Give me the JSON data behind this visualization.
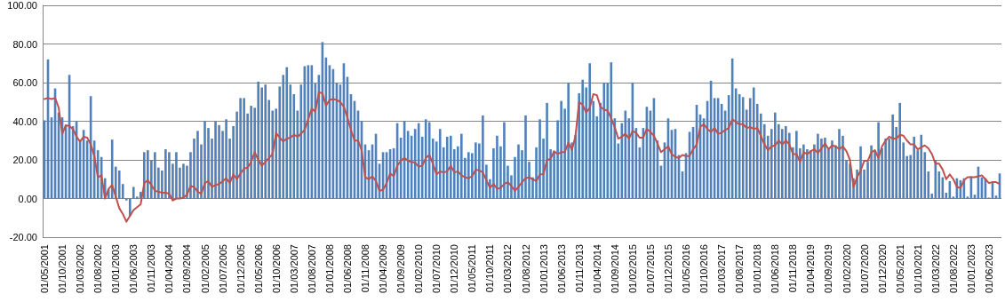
{
  "chart_data": {
    "type": "bar",
    "categories": [
      "01/05/2001",
      null,
      null,
      null,
      null,
      "01/10/2001",
      null,
      null,
      null,
      null,
      "01/03/2002",
      null,
      null,
      null,
      null,
      "01/08/2002",
      null,
      null,
      null,
      null,
      "01/01/2003",
      null,
      null,
      null,
      null,
      "01/06/2003",
      null,
      null,
      null,
      null,
      "01/11/2003",
      null,
      null,
      null,
      null,
      "01/04/2004",
      null,
      null,
      null,
      null,
      "01/09/2004",
      null,
      null,
      null,
      null,
      "01/02/2005",
      null,
      null,
      null,
      null,
      "01/07/2005",
      null,
      null,
      null,
      null,
      "01/12/2005",
      null,
      null,
      null,
      null,
      "01/05/2006",
      null,
      null,
      null,
      null,
      "01/10/2006",
      null,
      null,
      null,
      null,
      "01/03/2007",
      null,
      null,
      null,
      null,
      "01/08/2007",
      null,
      null,
      null,
      null,
      "01/01/2008",
      null,
      null,
      null,
      null,
      "01/06/2008",
      null,
      null,
      null,
      null,
      "01/11/2008",
      null,
      null,
      null,
      null,
      "01/04/2009",
      null,
      null,
      null,
      null,
      "01/09/2009",
      null,
      null,
      null,
      null,
      "01/02/2010",
      null,
      null,
      null,
      null,
      "01/07/2010",
      null,
      null,
      null,
      null,
      "01/12/2010",
      null,
      null,
      null,
      null,
      "01/05/2011",
      null,
      null,
      null,
      null,
      "01/10/2011",
      null,
      null,
      null,
      null,
      "01/03/2012",
      null,
      null,
      null,
      null,
      "01/08/2012",
      null,
      null,
      null,
      null,
      "01/01/2013",
      null,
      null,
      null,
      null,
      "01/06/2013",
      null,
      null,
      null,
      null,
      "01/11/2013",
      null,
      null,
      null,
      null,
      "01/04/2014",
      null,
      null,
      null,
      null,
      "01/09/2014",
      null,
      null,
      null,
      null,
      "01/02/2015",
      null,
      null,
      null,
      null,
      "01/07/2015",
      null,
      null,
      null,
      null,
      "01/12/2015",
      null,
      null,
      null,
      null,
      "01/05/2016",
      null,
      null,
      null,
      null,
      "01/10/2016",
      null,
      null,
      null,
      null,
      "01/03/2017",
      null,
      null,
      null,
      null,
      "01/08/2017",
      null,
      null,
      null,
      null,
      "01/01/2018",
      null,
      null,
      null,
      null,
      "01/06/2018",
      null,
      null,
      null,
      null,
      "01/11/2018",
      null,
      null,
      null,
      null,
      "01/04/2019",
      null,
      null,
      null,
      null,
      "01/09/2019",
      null,
      null,
      null,
      null,
      "01/02/2020",
      null,
      null,
      null,
      null,
      "01/07/2020",
      null,
      null,
      null,
      null,
      "01/12/2020",
      null,
      null,
      null,
      null,
      "01/05/2021",
      null,
      null,
      null,
      null,
      "01/10/2021",
      null,
      null,
      null,
      null,
      "01/03/2022",
      null,
      null,
      null,
      null,
      "01/08/2022",
      null,
      null,
      null,
      null,
      "01/01/2023",
      null,
      null,
      null,
      null,
      "01/06/2023",
      null,
      null,
      null
    ],
    "series": [
      {
        "color": "#4f81bd",
        "values": [
          40.5,
          72,
          42,
          57,
          44.5,
          42,
          38,
          64,
          37.5,
          40,
          30,
          35.5,
          30,
          53,
          30,
          25,
          21.5,
          10.5,
          5,
          30.5,
          16.5,
          14.5,
          7.5,
          -1,
          -9,
          6,
          1,
          3.5,
          24,
          25,
          20,
          24,
          16,
          14.5,
          25.5,
          24,
          18,
          24,
          16,
          18,
          17,
          24,
          31,
          35,
          28,
          40,
          36.5,
          31,
          40,
          38,
          35,
          41,
          31,
          37.5,
          45,
          52,
          52,
          44,
          48,
          47,
          60.5,
          57.5,
          59,
          51,
          45.5,
          46.5,
          58,
          64,
          68,
          59,
          54,
          45.5,
          59,
          68.5,
          69,
          69,
          59.5,
          64,
          81,
          73,
          69,
          67,
          60,
          59,
          70,
          63,
          54,
          50.5,
          45.5,
          40,
          28,
          25,
          28,
          33.5,
          18,
          24,
          24,
          25.5,
          26,
          39,
          31.5,
          40,
          35,
          32.5,
          36,
          39,
          32,
          41,
          39.5,
          31,
          29.5,
          36,
          26.5,
          32,
          32.5,
          25.5,
          27,
          33.5,
          21,
          24,
          23.5,
          29,
          28.5,
          43,
          17.5,
          10,
          26,
          32.5,
          27,
          39.5,
          17,
          12,
          21.5,
          28,
          25,
          43,
          19,
          11,
          26.5,
          41,
          31,
          49.5,
          25.5,
          24.5,
          40.5,
          50.5,
          46.5,
          60,
          29,
          33,
          54.5,
          61.5,
          57.5,
          70,
          50.5,
          42.5,
          49.5,
          60,
          60,
          70.5,
          41.5,
          28.5,
          39,
          45.5,
          41.5,
          60,
          36.5,
          26.5,
          36.5,
          47.5,
          45.5,
          52,
          30,
          17,
          29,
          41.5,
          35.5,
          36,
          22.5,
          14,
          23.5,
          34.5,
          37,
          48.5,
          43.5,
          41.5,
          50.5,
          61,
          52,
          52,
          49,
          45.5,
          53.5,
          72.5,
          57,
          54,
          52.5,
          46,
          52,
          57.5,
          49,
          44,
          38.5,
          32.5,
          36,
          44.5,
          38.5,
          36,
          37.5,
          34,
          26.5,
          35,
          26,
          28,
          25.5,
          25,
          28,
          33.5,
          31,
          31.5,
          25.5,
          30,
          27.5,
          36,
          32.5,
          20,
          18,
          10.5,
          15,
          27,
          15,
          19,
          27.5,
          25,
          39.5,
          26,
          31,
          31,
          43.5,
          37,
          49.5,
          29,
          22,
          22.5,
          32,
          25,
          33,
          24,
          14,
          2.5,
          20,
          14,
          11,
          3,
          9,
          1,
          10.5,
          9.5,
          10.5,
          1,
          11.5,
          2,
          16.5,
          11,
          10.5,
          0.5,
          8,
          1.5,
          13
        ]
      },
      {
        "type": "line",
        "color": "#c0504d",
        "values": [
          51.5,
          52,
          51.5,
          52,
          47,
          33.5,
          38,
          37.5,
          36,
          32,
          29.5,
          32,
          31.5,
          28,
          22,
          11,
          12,
          0,
          5,
          7,
          1,
          -5,
          -8,
          -12,
          -9,
          -6,
          -4.5,
          -3,
          8,
          9.5,
          7,
          4,
          3.5,
          3,
          3,
          2.5,
          -1,
          0,
          0,
          0.5,
          2,
          6.5,
          6,
          3.5,
          2.5,
          8,
          9,
          6,
          7,
          7.5,
          9,
          10.5,
          8,
          12.5,
          10,
          13,
          15.5,
          16,
          19,
          24,
          20,
          17,
          19,
          21,
          23,
          34,
          31.5,
          29.5,
          31,
          31.5,
          33,
          32,
          33.5,
          35.5,
          41,
          46.5,
          45,
          55,
          54.5,
          48,
          51,
          51.5,
          51,
          50,
          47.5,
          42,
          35.5,
          30,
          30,
          25,
          11,
          10,
          11.5,
          9,
          4,
          4.5,
          8,
          13,
          11.5,
          17,
          19.5,
          21,
          19.5,
          19,
          18.5,
          16.5,
          17,
          21,
          22.5,
          18,
          12.5,
          14,
          13.5,
          14,
          17,
          13.5,
          14,
          12,
          11,
          10.5,
          11.5,
          15,
          14.5,
          13.5,
          9.5,
          5.5,
          7.5,
          5,
          5.5,
          7.5,
          8.5,
          6.5,
          4,
          6,
          8.5,
          10.5,
          11,
          10,
          9,
          12.5,
          12.5,
          20,
          20.5,
          24.5,
          23,
          24,
          24,
          29,
          25,
          32.5,
          50,
          48.5,
          44.5,
          47,
          54,
          53.5,
          47.5,
          46,
          45.5,
          41.5,
          37,
          31,
          32,
          33.5,
          31,
          35,
          34,
          31.5,
          31.5,
          36,
          34.5,
          32.5,
          28.5,
          24,
          25.5,
          27,
          23,
          21.5,
          21,
          22.5,
          22,
          22,
          25.5,
          28,
          37,
          38.5,
          36,
          34.5,
          36.5,
          33.5,
          34,
          35.5,
          36.5,
          41,
          39.5,
          38.5,
          38.5,
          36.5,
          37,
          36,
          36.5,
          32.5,
          28,
          25,
          27,
          27.5,
          30,
          28,
          30,
          28,
          23,
          23,
          19,
          24,
          23,
          24.5,
          25.5,
          23.5,
          26,
          28.5,
          25.5,
          27.5,
          27,
          25.5,
          27,
          24.5,
          20,
          6,
          11,
          14.5,
          19.5,
          19.5,
          24,
          25,
          21,
          27,
          30,
          32,
          31,
          31,
          33,
          32.5,
          30,
          28,
          28,
          25.5,
          26.5,
          27.5,
          26,
          23,
          18,
          18,
          15,
          10,
          12.5,
          10,
          6,
          5.5,
          9.5,
          11,
          11,
          11,
          11.5,
          12,
          10,
          8,
          8.5,
          8.5,
          7.5
        ]
      }
    ],
    "ylim": [
      -20,
      100
    ],
    "yticks": [
      {
        "value": -20,
        "label": "-20.00"
      },
      {
        "value": 0,
        "label": "0.00"
      },
      {
        "value": 20,
        "label": "20.00"
      },
      {
        "value": 40,
        "label": "40.00"
      },
      {
        "value": 60,
        "label": "60.00"
      },
      {
        "value": 80,
        "label": "80.00"
      },
      {
        "value": 100,
        "label": "100.00"
      }
    ],
    "grid": "y"
  }
}
